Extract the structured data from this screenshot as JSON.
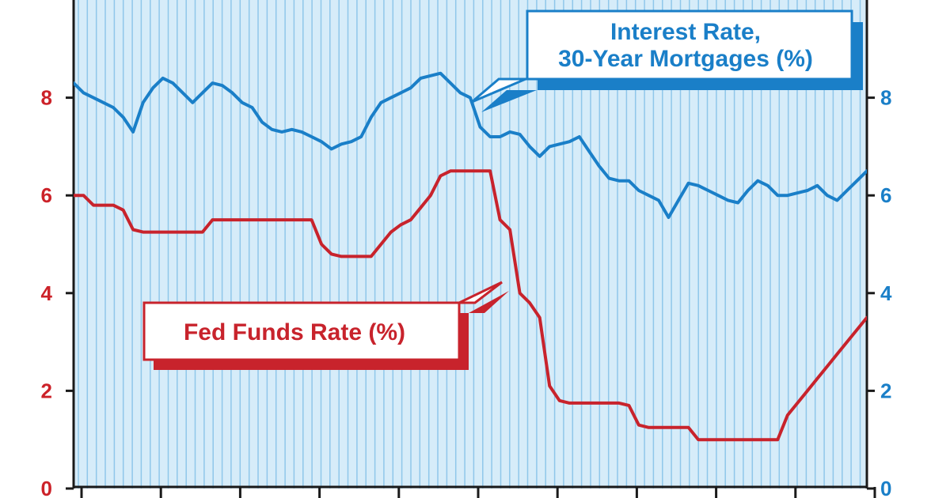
{
  "colors": {
    "fed_funds": "#c8232c",
    "mortgage": "#1a7fc8",
    "plot_bg": "#d6ecf9",
    "stripe": "#8fc7ea",
    "axis": "#1a1a1a",
    "left_tick_text": "#cc2229",
    "right_tick_text": "#1a7fc8"
  },
  "chart_data": {
    "type": "line",
    "ylim": [
      0,
      10
    ],
    "left_axis_ticks": [
      "0",
      "2",
      "4",
      "6",
      "8"
    ],
    "right_axis_ticks": [
      "0",
      "2",
      "4",
      "6",
      "8"
    ],
    "grid": "vertical stripes",
    "x_index_range": [
      0,
      80
    ],
    "series": [
      {
        "name": "Fed Funds Rate (%)",
        "color": "#c8232c",
        "axis": "left",
        "x": [
          0,
          1,
          2,
          3,
          4,
          5,
          6,
          7,
          8,
          9,
          10,
          11,
          12,
          13,
          14,
          15,
          16,
          17,
          18,
          19,
          20,
          21,
          22,
          23,
          24,
          25,
          26,
          27,
          28,
          29,
          30,
          31,
          32,
          33,
          34,
          35,
          36,
          37,
          38,
          39,
          40,
          41,
          42,
          43,
          44,
          45,
          46,
          47,
          48,
          49,
          50,
          51,
          52,
          53,
          54,
          55,
          56,
          57,
          58,
          59,
          60,
          61,
          62,
          63,
          64,
          65,
          66,
          67,
          68,
          69,
          70,
          71,
          72,
          73,
          74,
          75,
          76,
          77,
          78,
          79,
          80
        ],
        "values": [
          6.0,
          6.0,
          5.8,
          5.8,
          5.8,
          5.7,
          5.3,
          5.25,
          5.25,
          5.25,
          5.25,
          5.25,
          5.25,
          5.25,
          5.5,
          5.5,
          5.5,
          5.5,
          5.5,
          5.5,
          5.5,
          5.5,
          5.5,
          5.5,
          5.5,
          5.0,
          4.8,
          4.75,
          4.75,
          4.75,
          4.75,
          5.0,
          5.25,
          5.4,
          5.5,
          5.75,
          6.0,
          6.4,
          6.5,
          6.5,
          6.5,
          6.5,
          6.5,
          5.5,
          5.3,
          4.0,
          3.8,
          3.5,
          2.1,
          1.8,
          1.75,
          1.75,
          1.75,
          1.75,
          1.75,
          1.75,
          1.7,
          1.3,
          1.25,
          1.25,
          1.25,
          1.25,
          1.25,
          1.0,
          1.0,
          1.0,
          1.0,
          1.0,
          1.0,
          1.0,
          1.0,
          1.0,
          1.5,
          1.75,
          2.0,
          2.25,
          2.5,
          2.75,
          3.0,
          3.25,
          3.5
        ]
      },
      {
        "name": "Interest Rate, 30-Year Mortgages (%)",
        "color": "#1a7fc8",
        "axis": "right",
        "x": [
          0,
          1,
          2,
          3,
          4,
          5,
          6,
          7,
          8,
          9,
          10,
          11,
          12,
          13,
          14,
          15,
          16,
          17,
          18,
          19,
          20,
          21,
          22,
          23,
          24,
          25,
          26,
          27,
          28,
          29,
          30,
          31,
          32,
          33,
          34,
          35,
          36,
          37,
          38,
          39,
          40,
          41,
          42,
          43,
          44,
          45,
          46,
          47,
          48,
          49,
          50,
          51,
          52,
          53,
          54,
          55,
          56,
          57,
          58,
          59,
          60,
          61,
          62,
          63,
          64,
          65,
          66,
          67,
          68,
          69,
          70,
          71,
          72,
          73,
          74,
          75,
          76,
          77,
          78,
          79,
          80
        ],
        "values": [
          8.3,
          8.1,
          8.0,
          7.9,
          7.8,
          7.6,
          7.3,
          7.9,
          8.2,
          8.4,
          8.3,
          8.1,
          7.9,
          8.1,
          8.3,
          8.25,
          8.1,
          7.9,
          7.8,
          7.5,
          7.35,
          7.3,
          7.35,
          7.3,
          7.2,
          7.1,
          6.95,
          7.05,
          7.1,
          7.2,
          7.6,
          7.9,
          8.0,
          8.1,
          8.2,
          8.4,
          8.45,
          8.5,
          8.3,
          8.1,
          8.0,
          7.4,
          7.2,
          7.2,
          7.3,
          7.25,
          7.0,
          6.8,
          7.0,
          7.05,
          7.1,
          7.2,
          6.9,
          6.6,
          6.35,
          6.3,
          6.3,
          6.1,
          6.0,
          5.9,
          5.55,
          5.9,
          6.25,
          6.2,
          6.1,
          6.0,
          5.9,
          5.85,
          6.1,
          6.3,
          6.2,
          6.0,
          6.0,
          6.05,
          6.1,
          6.2,
          6.0,
          5.9,
          6.1,
          6.3,
          6.5
        ]
      }
    ]
  },
  "annotations": {
    "mortgage_label_line1": "Interest Rate,",
    "mortgage_label_line2": "30-Year Mortgages (%)",
    "fed_label": "Fed Funds Rate (%)"
  }
}
